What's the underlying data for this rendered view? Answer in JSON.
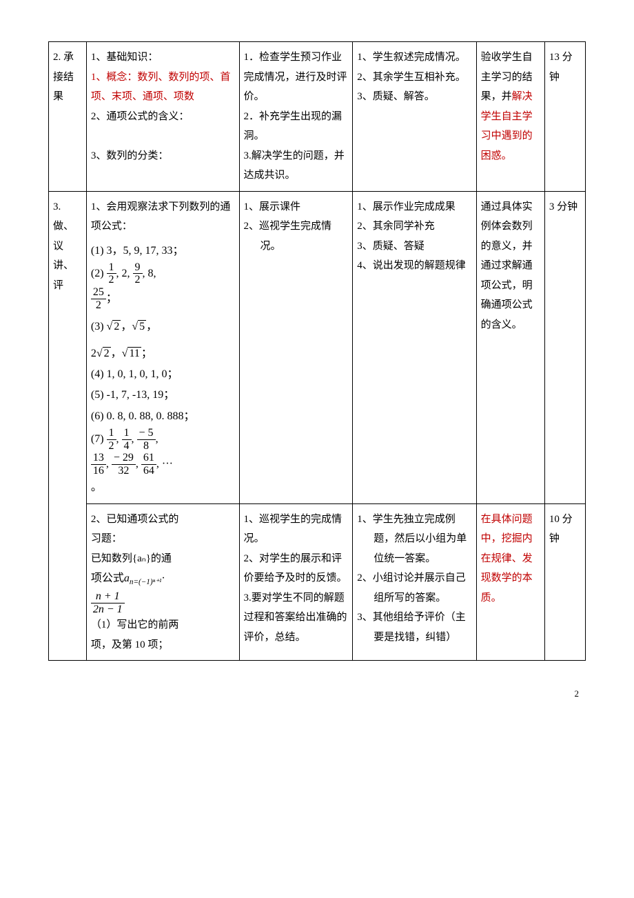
{
  "rows": [
    {
      "col0": "2.\n承接结果",
      "col1_parts": [
        {
          "t": "1、基础知识：",
          "red": false
        },
        {
          "t": "1、概念：数列、数列的项、首项、末项、通项、项数",
          "red": true
        },
        {
          "t": "2、通项公式的含义：",
          "red": false
        },
        {
          "t": " ",
          "red": false
        },
        {
          "t": "3、数列的分类：",
          "red": false
        },
        {
          "t": " ",
          "red": false
        }
      ],
      "col2": "1．检查学生预习作业完成情况，进行及时评价。\n2．补充学生出现的漏洞。\n3.解决学生的问题，并达成共识。",
      "col3_items": [
        "学生叙述完成情况。",
        "其余学生互相补充。",
        "质疑、解答。"
      ],
      "col3_numbers": [
        "1、",
        "2、",
        "3、"
      ],
      "col4_parts": [
        {
          "t": "验收学生自主学习的结果，并",
          "red": false
        },
        {
          "t": "解决学生自主学习中遇到的困惑。",
          "red": true
        }
      ],
      "col5": "13 分钟"
    },
    {
      "col0": "3.\n做、议\n讲、评",
      "subrows": [
        {
          "col1_head": "1、会用观察法求下列数列的通项公式：",
          "col1_lists": {
            "l1": "(1) 3，5, 9, 17, 33；",
            "l2_prefix": "(2) ",
            "l2_fracs": [
              {
                "n": "1",
                "d": "2"
              },
              {
                "plain": ", 2, "
              },
              {
                "n": "9",
                "d": "2"
              },
              {
                "plain": ", 8,"
              }
            ],
            "l2b": {
              "n": "25",
              "d": "2"
            },
            "l3_prefix": "(3) ",
            "l3_vals": [
              "√2",
              ", ",
              "√5",
              ","
            ],
            "l3b_vals": [
              "2√2",
              ", ",
              "√11",
              "；"
            ],
            "l4": "(4)  1, 0, 1, 0, 1, 0；",
            "l5": "(5)  -1, 7, -13, 19；",
            "l6": "(6)  0. 8, 0. 88, 0. 888；",
            "l7_prefix": "(7) ",
            "l7_fracs": [
              {
                "n": "1",
                "d": "2"
              },
              {
                "plain": ", "
              },
              {
                "n": "1",
                "d": "4"
              },
              {
                "plain": ", "
              },
              {
                "n": "− 5",
                "d": "8"
              },
              {
                "plain": ","
              }
            ],
            "l7b_fracs": [
              {
                "n": "13",
                "d": "16"
              },
              {
                "plain": ", "
              },
              {
                "n": "− 29",
                "d": "32"
              },
              {
                "plain": ", "
              },
              {
                "n": "61",
                "d": "64"
              },
              {
                "plain": ", ···"
              }
            ],
            "l7c": "。"
          },
          "col2_items": [
            "展示课件",
            "巡视学生完成情况。"
          ],
          "col2_numbers": [
            "1、",
            "2、"
          ],
          "col3": "1、展示作业完成成果\n2、其余同学补充\n3、质疑、答疑\n4、说出发现的解题规律",
          "col4": "通过具体实例体会数列的意义，并通过求解通项公式，明确通项公式的含义。",
          "col5": "3 分钟"
        },
        {
          "col1_head": "2、已知通项公式的",
          "col1_body": [
            "习题：",
            "已知数列{aₙ}的通",
            "__FORMULA__",
            "__FRAC_n1_2n1__",
            "（1）写出它的前两",
            "项，及第 10 项；"
          ],
          "formula_label": "项公式",
          "formula_a": "a",
          "formula_sub_n": "n=(−1)ⁿ⁺¹",
          "formula_dot": "·",
          "frac_n": "n + 1",
          "frac_d": "2n − 1",
          "col2": "1、巡视学生的完成情况。\n2、对学生的展示和评价要给予及时的反馈。\n3.要对学生不同的解题过程和答案给出准确的评价，总结。",
          "col3_items": [
            "学生先独立完成例题，然后以小组为单位统一答案。",
            "小组讨论并展示自己组所写的答案。",
            "其他组给予评价（主要是找错，纠错）"
          ],
          "col3_numbers": [
            "1、",
            "2、",
            "3、"
          ],
          "col4_red": "在具体问题中，挖掘内在规律、发现数学的本质。",
          "col5": "10 分钟"
        }
      ]
    }
  ],
  "footer": "2"
}
